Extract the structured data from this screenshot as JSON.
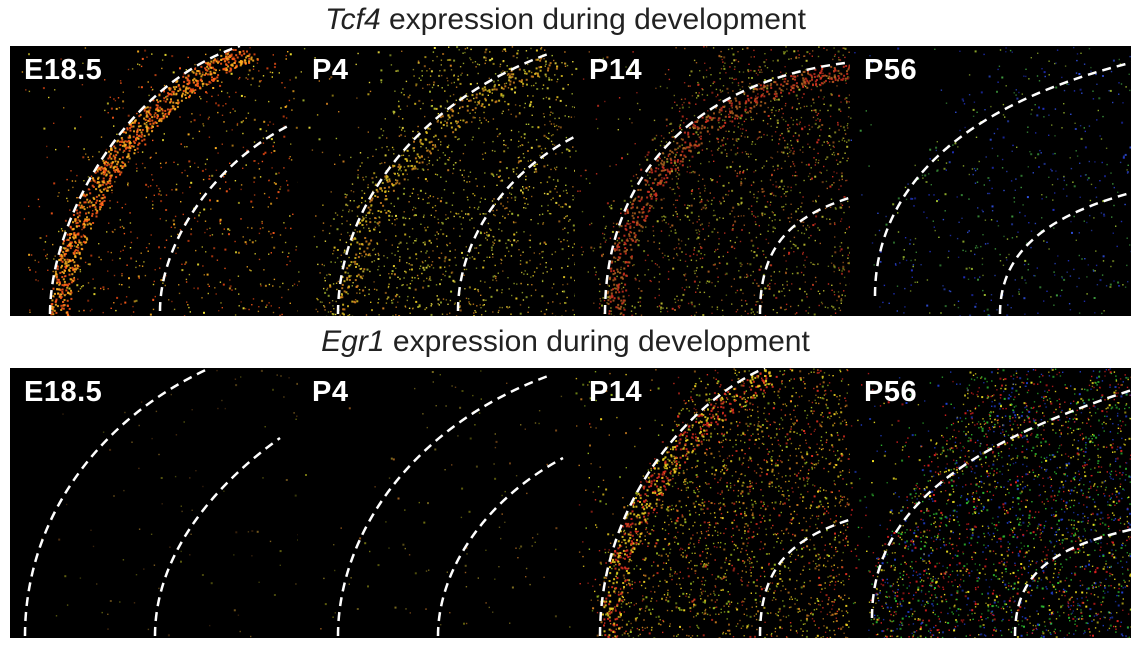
{
  "rows": [
    {
      "gene": "Tcf4",
      "caption": " expression during development",
      "panels": [
        {
          "label": "E18.5",
          "palette": [
            "#ff5a1a",
            "#ffb020",
            "#f0e030",
            "#d04010"
          ],
          "density": 1.0,
          "cortex_edge_band": 1.0,
          "inner_density": 0.25,
          "dots": 900
        },
        {
          "label": "P4",
          "palette": [
            "#e0c020",
            "#d08020",
            "#b0c030",
            "#f0e040"
          ],
          "density": 0.8,
          "cortex_edge_band": 0.3,
          "inner_density": 0.5,
          "dots": 1800
        },
        {
          "label": "P14",
          "palette": [
            "#d03020",
            "#b06020",
            "#90a020",
            "#c0c030"
          ],
          "density": 0.7,
          "cortex_edge_band": 0.6,
          "inner_density": 0.55,
          "dots": 2000
        },
        {
          "label": "P56",
          "palette": [
            "#2030c0",
            "#3050e0",
            "#40a040",
            "#a0c030"
          ],
          "density": 0.3,
          "cortex_edge_band": 0.0,
          "inner_density": 0.3,
          "dots": 700
        }
      ]
    },
    {
      "gene": "Egr1",
      "caption": " expression during development",
      "panels": [
        {
          "label": "E18.5",
          "palette": [
            "#806020",
            "#606010",
            "#503010"
          ],
          "density": 0.05,
          "cortex_edge_band": 0.0,
          "inner_density": 0.05,
          "dots": 120
        },
        {
          "label": "P4",
          "palette": [
            "#807020",
            "#a06020",
            "#707010"
          ],
          "density": 0.08,
          "cortex_edge_band": 0.0,
          "inner_density": 0.08,
          "dots": 160
        },
        {
          "label": "P14",
          "palette": [
            "#e03020",
            "#f0d020",
            "#a0c020",
            "#d08020"
          ],
          "density": 0.9,
          "cortex_edge_band": 0.5,
          "inner_density": 0.8,
          "dots": 2600
        },
        {
          "label": "P56",
          "palette": [
            "#e02020",
            "#f0e020",
            "#30c030",
            "#2040d0"
          ],
          "density": 1.0,
          "cortex_edge_band": 0.0,
          "inner_density": 1.0,
          "dots": 3200
        }
      ]
    }
  ]
}
